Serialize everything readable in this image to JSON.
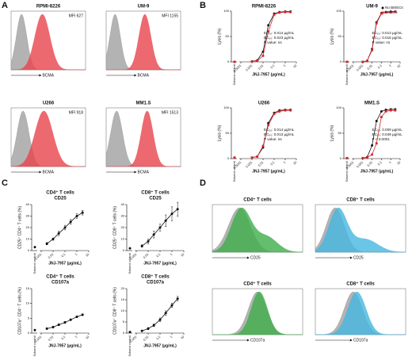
{
  "panel_labels": [
    "A",
    "B",
    "C",
    "D"
  ],
  "chart_data": [
    {
      "type": "flow-histogram",
      "title": "RPMI-8226",
      "annotation": "MFI 627",
      "xlabel": "BCMA",
      "colors": [
        "#b3b3b3",
        "#e8434c"
      ]
    },
    {
      "type": "flow-histogram",
      "title": "UM-9",
      "annotation": "MFI 1155",
      "xlabel": "BCMA",
      "colors": [
        "#b3b3b3",
        "#e8434c"
      ]
    },
    {
      "type": "flow-histogram",
      "title": "U266",
      "annotation": "MFI 918",
      "xlabel": "BCMA",
      "colors": [
        "#b3b3b3",
        "#e8434c"
      ]
    },
    {
      "type": "flow-histogram",
      "title": "MM1.S",
      "annotation": "MFI 1513",
      "xlabel": "BCMA",
      "colors": [
        "#b3b3b3",
        "#e8434c"
      ]
    },
    {
      "type": "line",
      "title": "RPMI-8226",
      "ylabel": "Lysis (%)",
      "xlabel": "JNJ-7957 (µg/mL)",
      "control_label": "Solvent control",
      "log_x": true,
      "x": [
        0.001,
        0.003,
        0.01,
        0.03,
        0.1,
        0.3,
        1,
        3
      ],
      "series": [
        {
          "color": "#111111",
          "marker": "circle",
          "control": 0,
          "values": [
            1,
            3,
            20,
            72,
            95,
            98,
            99,
            99
          ]
        },
        {
          "color": "#d7262c",
          "marker": "square",
          "control": 0,
          "values": [
            1,
            2,
            12,
            60,
            93,
            97,
            98,
            98
          ]
        }
      ],
      "xlim": [
        0.0001,
        10
      ],
      "xticks": [
        0.0001,
        0.001,
        0.01,
        0.1,
        1,
        10
      ],
      "ylim": [
        0,
        100
      ],
      "yticks": [
        0,
        50,
        100
      ],
      "annotations": [
        {
          "text": "EC₅₀: 0.014 µg/mL",
          "color": "#111111"
        },
        {
          "text": "EC₅₀: 0.023 µg/mL",
          "color": "#d7262c"
        },
        {
          "text": "P value: ns",
          "color": "#111111"
        }
      ]
    },
    {
      "type": "line",
      "title": "UM-9",
      "ylabel": "Lysis (%)",
      "xlabel": "JNJ-7957 (µg/mL)",
      "control_label": "Solvent control",
      "log_x": true,
      "legend": "top-right",
      "x": [
        0.001,
        0.003,
        0.01,
        0.03,
        0.1,
        0.3,
        1,
        3
      ],
      "series": [
        {
          "name": "No BMSCs",
          "color": "#111111",
          "marker": "circle",
          "control": 0,
          "values": [
            0,
            2,
            25,
            78,
            96,
            98,
            99,
            99
          ]
        },
        {
          "name": "BMSCs",
          "color": "#d7262c",
          "marker": "square",
          "control": 0,
          "values": [
            0,
            2,
            23,
            76,
            95,
            98,
            98,
            99
          ]
        }
      ],
      "xlim": [
        0.0001,
        10
      ],
      "xticks": [
        0.0001,
        0.001,
        0.01,
        0.1,
        1,
        10
      ],
      "ylim": [
        0,
        100
      ],
      "yticks": [
        0,
        50,
        100
      ],
      "annotations": [
        {
          "text": "EC₅₀: 0.013 µg/mL",
          "color": "#111111"
        },
        {
          "text": "EC₅₀: 0.015 µg/mL",
          "color": "#d7262c"
        },
        {
          "text": "P value: ns",
          "color": "#111111"
        }
      ]
    },
    {
      "type": "line",
      "title": "U266",
      "ylabel": "Lysis (%)",
      "xlabel": "JNJ-7957 (µg/mL)",
      "control_label": "Solvent control",
      "log_x": true,
      "x": [
        0.001,
        0.003,
        0.01,
        0.03,
        0.1,
        0.3,
        1,
        3
      ],
      "series": [
        {
          "color": "#111111",
          "marker": "circle",
          "control": 2,
          "values": [
            2,
            4,
            22,
            70,
            90,
            95,
            96,
            96
          ]
        },
        {
          "color": "#d7262c",
          "marker": "square",
          "control": 2,
          "values": [
            2,
            4,
            25,
            66,
            88,
            93,
            95,
            95
          ]
        }
      ],
      "xlim": [
        0.0001,
        10
      ],
      "xticks": [
        0.0001,
        0.001,
        0.01,
        0.1,
        1,
        10
      ],
      "ylim": [
        0,
        100
      ],
      "yticks": [
        0,
        50,
        100
      ],
      "annotations": [
        {
          "text": "EC₅₀: 0.014 µg/mL",
          "color": "#111111"
        },
        {
          "text": "EC₅₀: 0.013 µg/mL",
          "color": "#d7262c"
        },
        {
          "text": "P value: ns",
          "color": "#111111"
        }
      ]
    },
    {
      "type": "line",
      "title": "MM1.S",
      "ylabel": "Lysis (%)",
      "xlabel": "JNJ-7957 (µg/mL)",
      "control_label": "Solvent control",
      "log_x": true,
      "x": [
        0.001,
        0.003,
        0.01,
        0.03,
        0.1,
        0.3,
        1,
        3
      ],
      "series": [
        {
          "color": "#111111",
          "marker": "circle",
          "control": 1,
          "values": [
            1,
            3,
            26,
            74,
            93,
            96,
            97,
            97
          ]
        },
        {
          "color": "#d7262c",
          "marker": "square",
          "control": 1,
          "values": [
            1,
            2,
            8,
            30,
            82,
            93,
            95,
            95
          ]
        }
      ],
      "xlim": [
        0.0001,
        10
      ],
      "xticks": [
        0.0001,
        0.001,
        0.01,
        0.1,
        1,
        10
      ],
      "ylim": [
        0,
        100
      ],
      "yticks": [
        0,
        50,
        100
      ],
      "annotations": [
        {
          "text": "EC₅₀: 0.009 µg/mL",
          "color": "#111111"
        },
        {
          "text": "EC₅₀: 0.049 µg/mL",
          "color": "#d7262c"
        },
        {
          "text": "P < 0.0001",
          "color": "#111111"
        }
      ]
    },
    {
      "type": "line",
      "title": [
        "CD4⁺ T cells",
        "CD25"
      ],
      "ylabel": "CD25⁺ CD4⁺ T cells (%)",
      "xlabel": "JNJ-7957 (µg/mL)",
      "control_label": "Solvent control",
      "log_x": true,
      "x": [
        0.003,
        0.01,
        0.03,
        0.1,
        0.3,
        1,
        3
      ],
      "color": "#111111",
      "marker": "circle",
      "control": 3,
      "values": [
        6,
        10,
        15,
        20,
        25,
        30,
        33
      ],
      "errors": [
        1,
        1,
        2,
        2,
        2,
        2,
        2
      ],
      "xlim": [
        0.001,
        10
      ],
      "xticks": [
        0.001,
        0.01,
        0.1,
        1,
        10
      ],
      "ylim": [
        0,
        40
      ],
      "yticks": [
        0,
        10,
        20,
        30,
        40
      ]
    },
    {
      "type": "line",
      "title": [
        "CD8⁺ T cells",
        "CD25"
      ],
      "ylabel": "CD25⁺ CD8⁺ T cells (%)",
      "xlabel": "JNJ-7957 (µg/mL)",
      "control_label": "Solvent control",
      "log_x": true,
      "x": [
        0.003,
        0.01,
        0.03,
        0.1,
        0.3,
        1,
        3
      ],
      "color": "#111111",
      "marker": "circle",
      "control": 2,
      "values": [
        4,
        8,
        14,
        20,
        26,
        32,
        36
      ],
      "errors": [
        1,
        2,
        3,
        3,
        5,
        6,
        6
      ],
      "xlim": [
        0.001,
        10
      ],
      "xticks": [
        0.001,
        0.01,
        0.1,
        1,
        10
      ],
      "ylim": [
        0,
        40
      ],
      "yticks": [
        0,
        10,
        20,
        30,
        40
      ]
    },
    {
      "type": "line",
      "title": [
        "CD4⁺ T cells",
        "CD107a"
      ],
      "ylabel": "CD107a⁺ CD4⁺ T cells (%)",
      "xlabel": "JNJ-7957 (µg/mL)",
      "control_label": "Solvent control",
      "log_x": true,
      "x": [
        0.003,
        0.01,
        0.03,
        0.1,
        0.3,
        1,
        3
      ],
      "color": "#111111",
      "marker": "circle",
      "control": 1,
      "values": [
        1.5,
        2,
        2.8,
        3.6,
        4.5,
        5.5,
        6.2
      ],
      "errors": [
        0.3,
        0.3,
        0.3,
        0.3,
        0.3,
        0.3,
        0.3
      ],
      "xlim": [
        0.001,
        10
      ],
      "xticks": [
        0.001,
        0.01,
        0.1,
        1,
        10
      ],
      "ylim": [
        0,
        15
      ],
      "yticks": [
        0,
        5,
        10,
        15
      ]
    },
    {
      "type": "line",
      "title": [
        "CD8⁺ T cells",
        "CD107a"
      ],
      "ylabel": "CD107a⁺ CD8⁺ T cells (%)",
      "xlabel": "JNJ-7957 (µg/mL)",
      "control_label": "Solvent control",
      "log_x": true,
      "x": [
        0.003,
        0.01,
        0.03,
        0.1,
        0.3,
        1,
        3
      ],
      "color": "#111111",
      "marker": "circle",
      "control": 0.5,
      "values": [
        1,
        2,
        3.5,
        6,
        9,
        12.5,
        15.5
      ],
      "errors": [
        0.3,
        0.5,
        0.6,
        0.8,
        1,
        1,
        1
      ],
      "xlim": [
        0.001,
        10
      ],
      "xticks": [
        0.001,
        0.01,
        0.1,
        1,
        10
      ],
      "ylim": [
        0,
        20
      ],
      "yticks": [
        0,
        5,
        10,
        15,
        20
      ]
    },
    {
      "type": "flow-histogram",
      "title": "CD4⁺ T cells",
      "xlabel": "CD25",
      "colors": [
        "#b3b3b3",
        "#3fae49"
      ]
    },
    {
      "type": "flow-histogram",
      "title": "CD8⁺ T cells",
      "xlabel": "CD25",
      "colors": [
        "#b3b3b3",
        "#45b6e0"
      ]
    },
    {
      "type": "flow-histogram",
      "title": "CD4⁺ T cells",
      "xlabel": "CD107a",
      "colors": [
        "#b3b3b3",
        "#3fae49"
      ]
    },
    {
      "type": "flow-histogram",
      "title": "CD8⁺ T cells",
      "xlabel": "CD107a",
      "colors": [
        "#b3b3b3",
        "#45b6e0"
      ]
    }
  ]
}
